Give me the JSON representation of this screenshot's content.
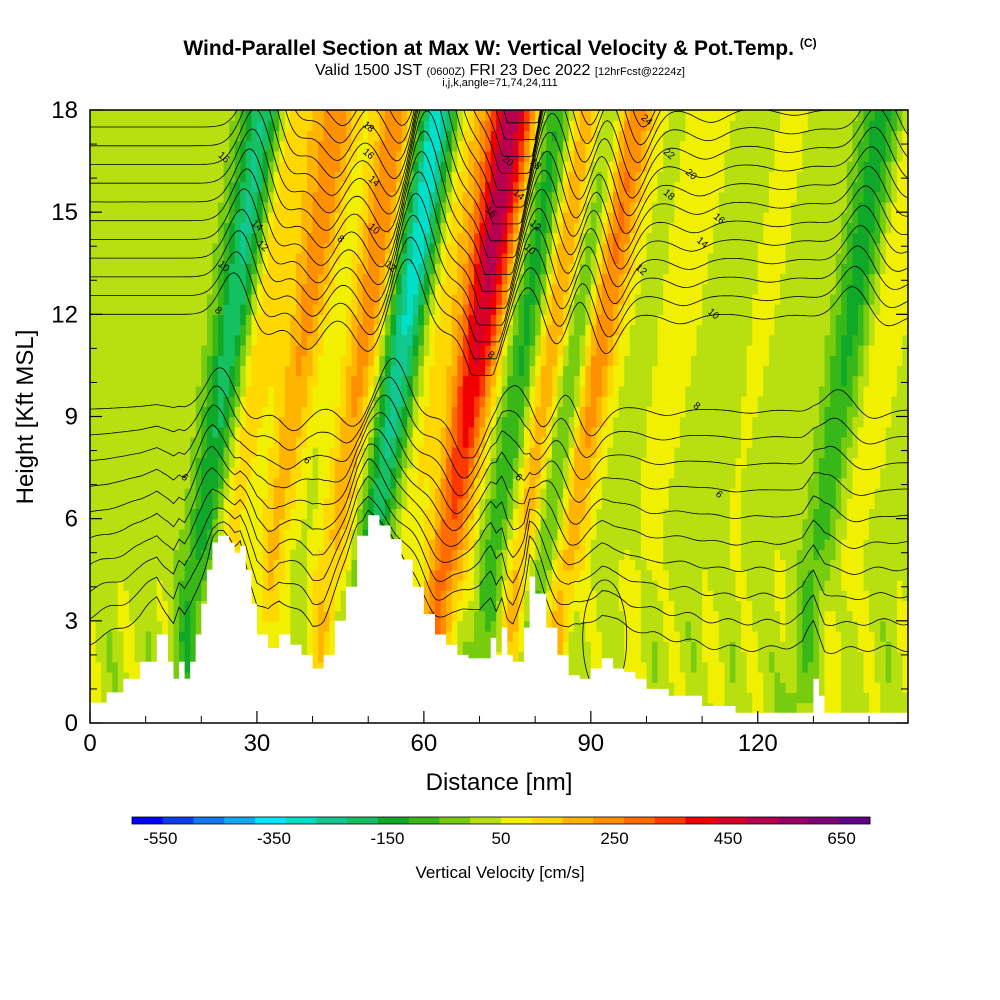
{
  "header": {
    "title": "Wind-Parallel Section at Max W: Vertical Velocity & Pot.Temp.",
    "copyright": "(C)",
    "subtitle_pre": "Valid 1500 JST",
    "subtitle_utc": "(0600Z)",
    "subtitle_date": "FRI 23 Dec 2022",
    "subtitle_run": "[12hrFcst@2224z]",
    "params": "i,j,k,angle=71,74,24,111"
  },
  "colors": {
    "background": "#ffffff",
    "terrain": "#ffffff",
    "contour": "#000000"
  },
  "chart_data": {
    "type": "heatmap",
    "xlabel": "Distance [nm]",
    "ylabel": "Height [Kft MSL]",
    "xlim": [
      0,
      147
    ],
    "ylim": [
      0,
      18
    ],
    "x_ticks": [
      0,
      30,
      60,
      90,
      120
    ],
    "y_ticks": [
      0,
      3,
      6,
      9,
      12,
      15,
      18
    ],
    "colorbar": {
      "title": "Vertical Velocity [cm/s]",
      "tick_labels": [
        "-550",
        "-350",
        "-150",
        "50",
        "250",
        "450",
        "650"
      ],
      "tick_values": [
        -550,
        -350,
        -150,
        50,
        250,
        450,
        650
      ],
      "range": [
        -600,
        700
      ],
      "colors": [
        "#0000ff",
        "#0a3cf0",
        "#0f78f0",
        "#10a8f0",
        "#00e6ff",
        "#00e0c8",
        "#10c890",
        "#14c060",
        "#10a828",
        "#38b818",
        "#78cc10",
        "#b8e010",
        "#f0f000",
        "#ffd800",
        "#ffb400",
        "#ff9000",
        "#ff6c00",
        "#ff3800",
        "#f00000",
        "#d80028",
        "#b80050",
        "#980068",
        "#800078",
        "#600088"
      ]
    },
    "terrain_profile": {
      "x": [
        0,
        3,
        6,
        9,
        12,
        14,
        15,
        16,
        17,
        18,
        19,
        20,
        21,
        22,
        23,
        24,
        25,
        26,
        27,
        28,
        29,
        30,
        32,
        34,
        36,
        38,
        40,
        42,
        44,
        46,
        48,
        50,
        52,
        54,
        56,
        58,
        60,
        62,
        64,
        66,
        68,
        70,
        72,
        73,
        74,
        75,
        76,
        78,
        79,
        80,
        82,
        84,
        86,
        88,
        90,
        92,
        94,
        96,
        98,
        100,
        104,
        110,
        116,
        122,
        128,
        130,
        131,
        132,
        134,
        140,
        147
      ],
      "height": [
        0.6,
        0.9,
        1.3,
        1.8,
        2.6,
        1.8,
        1.3,
        1.8,
        1.3,
        1.8,
        2.6,
        3.5,
        4.5,
        5.3,
        5.5,
        5.5,
        5.3,
        5.0,
        5.2,
        4.5,
        3.5,
        2.6,
        2.2,
        2.6,
        2.3,
        2.0,
        1.6,
        2.0,
        3.0,
        4.0,
        5.5,
        6.1,
        5.8,
        5.4,
        4.8,
        4.0,
        3.2,
        2.6,
        2.3,
        2.0,
        1.9,
        1.9,
        2.5,
        2.0,
        2.8,
        2.0,
        1.8,
        2.8,
        4.3,
        3.8,
        2.8,
        2.0,
        1.4,
        1.3,
        1.6,
        1.9,
        1.6,
        1.5,
        1.3,
        1.0,
        0.8,
        0.5,
        0.3,
        0.3,
        0.3,
        1.3,
        0.8,
        0.3,
        0.3,
        0.3,
        0.3
      ]
    },
    "bands": [
      {
        "x": 20,
        "value": -280
      },
      {
        "x": 25,
        "value": 150
      },
      {
        "x": 33,
        "value": 220
      },
      {
        "x": 44,
        "value": 240
      },
      {
        "x": 51,
        "value": -360
      },
      {
        "x": 57,
        "value": 110
      },
      {
        "x": 64,
        "value": 420
      },
      {
        "x": 67,
        "value": 120
      },
      {
        "x": 73,
        "value": -210
      },
      {
        "x": 78,
        "value": 280
      },
      {
        "x": 82,
        "value": -240
      },
      {
        "x": 86,
        "value": 300
      },
      {
        "x": 100,
        "value": 60
      },
      {
        "x": 115,
        "value": 30
      },
      {
        "x": 125,
        "value": 15
      },
      {
        "x": 131,
        "value": -180
      },
      {
        "x": 137,
        "value": 80
      }
    ],
    "contour_labels": [
      {
        "x": 24,
        "y": 16.6,
        "text": "16"
      },
      {
        "x": 30,
        "y": 14.6,
        "text": "14"
      },
      {
        "x": 31,
        "y": 14.0,
        "text": "12"
      },
      {
        "x": 24,
        "y": 13.4,
        "text": "10"
      },
      {
        "x": 23,
        "y": 12.1,
        "text": "8"
      },
      {
        "x": 17,
        "y": 7.2,
        "text": "6"
      },
      {
        "x": 39,
        "y": 7.7,
        "text": "6"
      },
      {
        "x": 45,
        "y": 14.2,
        "text": "8"
      },
      {
        "x": 50,
        "y": 17.5,
        "text": "18"
      },
      {
        "x": 50,
        "y": 16.7,
        "text": "16"
      },
      {
        "x": 51,
        "y": 15.9,
        "text": "14"
      },
      {
        "x": 51,
        "y": 14.5,
        "text": "10"
      },
      {
        "x": 54,
        "y": 13.4,
        "text": "12"
      },
      {
        "x": 75,
        "y": 16.5,
        "text": "20"
      },
      {
        "x": 80,
        "y": 16.4,
        "text": "18"
      },
      {
        "x": 77,
        "y": 15.5,
        "text": "14"
      },
      {
        "x": 72,
        "y": 15.0,
        "text": "16"
      },
      {
        "x": 80,
        "y": 14.6,
        "text": "12"
      },
      {
        "x": 79,
        "y": 13.9,
        "text": "10"
      },
      {
        "x": 72,
        "y": 10.8,
        "text": "8"
      },
      {
        "x": 77,
        "y": 7.2,
        "text": "6"
      },
      {
        "x": 100,
        "y": 17.7,
        "text": "24"
      },
      {
        "x": 104,
        "y": 16.7,
        "text": "22"
      },
      {
        "x": 108,
        "y": 16.1,
        "text": "20"
      },
      {
        "x": 104,
        "y": 15.5,
        "text": "18"
      },
      {
        "x": 113,
        "y": 14.8,
        "text": "16"
      },
      {
        "x": 110,
        "y": 14.1,
        "text": "14"
      },
      {
        "x": 99,
        "y": 13.3,
        "text": "12"
      },
      {
        "x": 112,
        "y": 12.0,
        "text": "10"
      },
      {
        "x": 109,
        "y": 9.3,
        "text": "8"
      },
      {
        "x": 113,
        "y": 6.7,
        "text": "6"
      }
    ]
  }
}
